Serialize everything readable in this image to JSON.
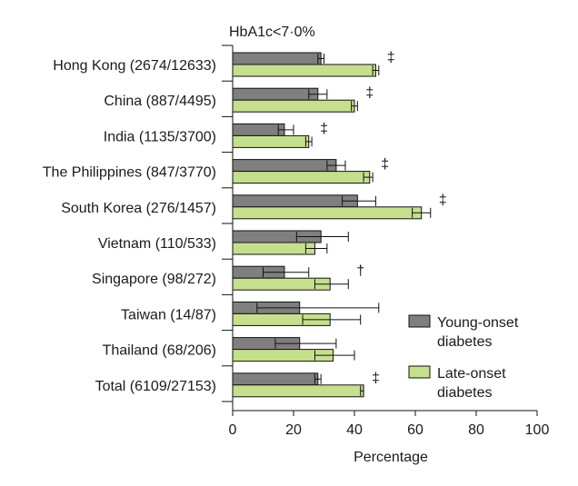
{
  "chart_data": {
    "type": "bar",
    "orientation": "horizontal",
    "title": "HbA1c<7·0%",
    "xlabel": "Percentage",
    "ylabel": "",
    "xlim": [
      0,
      100
    ],
    "xticks": [
      0,
      20,
      40,
      60,
      80,
      100
    ],
    "categories": [
      "Hong Kong (2674/12633)",
      "China (887/4495)",
      "India (1135/3700)",
      "The Philippines (847/3770)",
      "South Korea (276/1457)",
      "Vietnam (110/533)",
      "Singapore (98/272)",
      "Taiwan (14/87)",
      "Thailand (68/206)",
      "Total (6109/27153)"
    ],
    "series": [
      {
        "name": "Young-onset diabetes",
        "color": "#7f7f7f",
        "values": [
          29,
          28,
          17,
          34,
          41,
          29,
          17,
          22,
          22,
          28
        ],
        "ci": [
          [
            28,
            30
          ],
          [
            25,
            31
          ],
          [
            15,
            20
          ],
          [
            31,
            37
          ],
          [
            36,
            47
          ],
          [
            21,
            38
          ],
          [
            10,
            25
          ],
          [
            8,
            48
          ],
          [
            14,
            34
          ],
          [
            27,
            29
          ]
        ]
      },
      {
        "name": "Late-onset diabetes",
        "color": "#c5e08c",
        "values": [
          47,
          40,
          25,
          45,
          62,
          27,
          32,
          32,
          33,
          43
        ],
        "ci": [
          [
            46,
            48
          ],
          [
            39,
            41
          ],
          [
            24,
            26
          ],
          [
            43,
            46
          ],
          [
            59,
            65
          ],
          [
            24,
            31
          ],
          [
            27,
            38
          ],
          [
            23,
            42
          ],
          [
            27,
            40
          ],
          [
            42,
            43
          ]
        ]
      }
    ],
    "significance": [
      "‡",
      "‡",
      "‡",
      "‡",
      "‡",
      "",
      "†",
      "",
      "",
      "‡"
    ],
    "legend_position": "right"
  }
}
